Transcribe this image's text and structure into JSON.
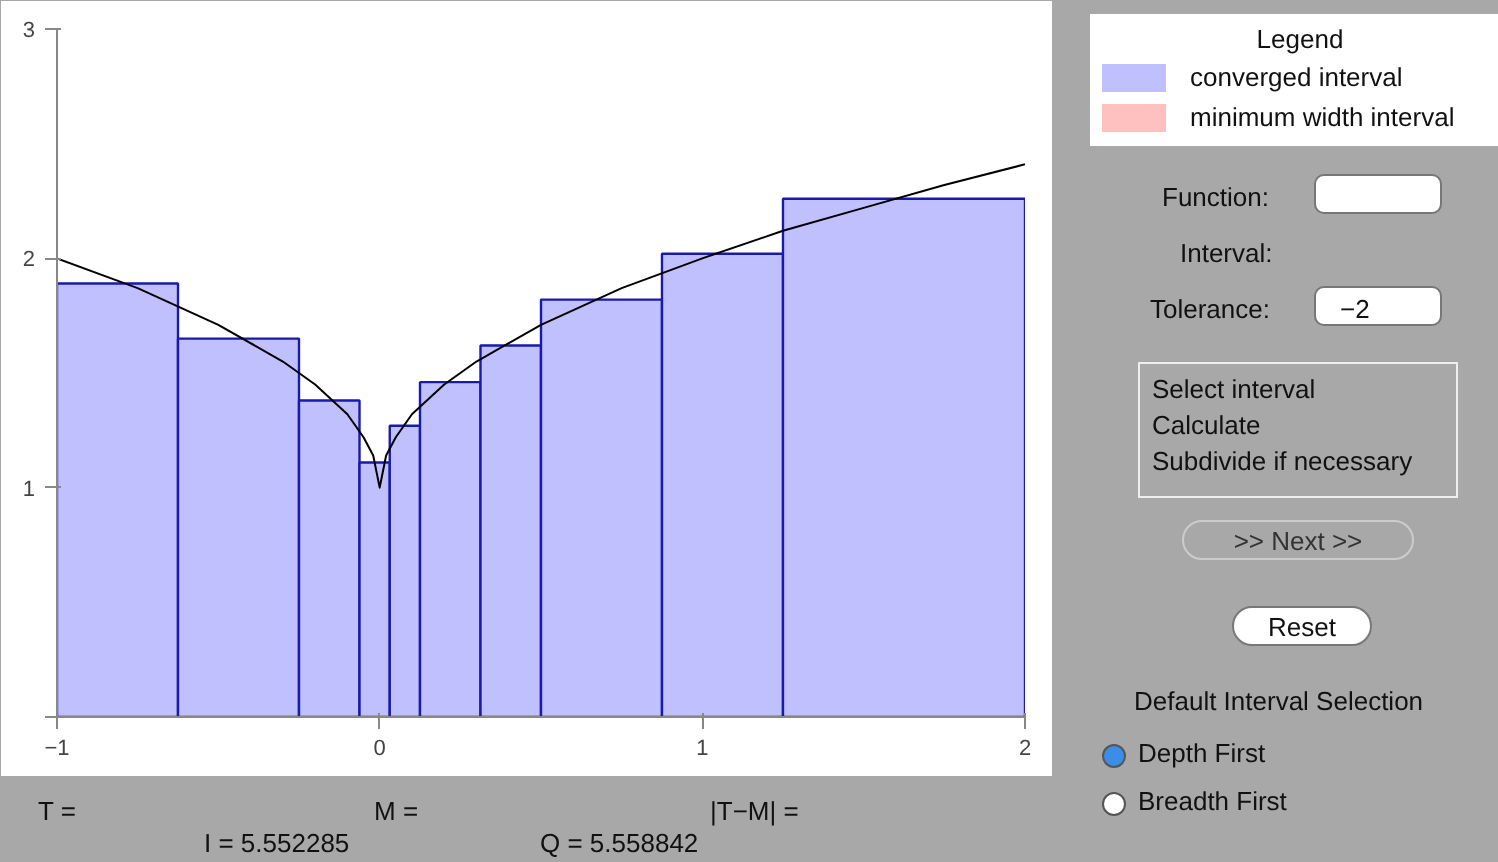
{
  "chart_data": {
    "type": "histogram",
    "legend_title": "Legend",
    "legend": "right",
    "grid": false,
    "xlim": [
      -1,
      2
    ],
    "xticks": [
      -1,
      0,
      1,
      2
    ],
    "ylim": [
      0,
      3
    ],
    "yticks": [
      {
        "value": 0,
        "label": null
      },
      1,
      2,
      3
    ],
    "series": [
      {
        "name": "converged interval",
        "color": "#c0c0ff",
        "bins": [
          -1,
          -0.625,
          -0.25,
          -0.0625,
          0.03125,
          0.125,
          0.3125,
          0.5,
          0.875,
          1.25,
          2
        ],
        "values": [
          1.89,
          1.65,
          1.38,
          1.11,
          1.27,
          1.46,
          1.62,
          1.82,
          2.02,
          2.26
        ]
      },
      {
        "name": "minimum width interval",
        "color": "#ffc0c0"
      },
      {
        "type": "line",
        "color": "#000000",
        "x": [
          -1,
          -0.75,
          -0.5,
          -0.3,
          -0.2,
          -0.1,
          -0.05,
          -0.02,
          0,
          0.02,
          0.05,
          0.1,
          0.2,
          0.3,
          0.5,
          0.75,
          1,
          1.25,
          1.5,
          1.75,
          2
        ],
        "values": [
          2.0,
          1.87,
          1.71,
          1.55,
          1.45,
          1.32,
          1.22,
          1.14,
          1.0,
          1.14,
          1.22,
          1.32,
          1.45,
          1.55,
          1.71,
          1.87,
          2.0,
          2.12,
          2.22,
          2.32,
          2.41
        ]
      }
    ],
    "annotations": [
      "T =",
      "M =",
      "|T−M| =",
      "I = 5.552285",
      "Q = 5.558842",
      "Function:",
      "Interval:",
      "Tolerance:",
      "−2",
      "Select interval",
      "Calculate",
      "Subdivide if necessary",
      ">> Next >>",
      "Reset",
      "Default Interval Selection",
      "Depth First",
      "Breadth First"
    ]
  }
}
